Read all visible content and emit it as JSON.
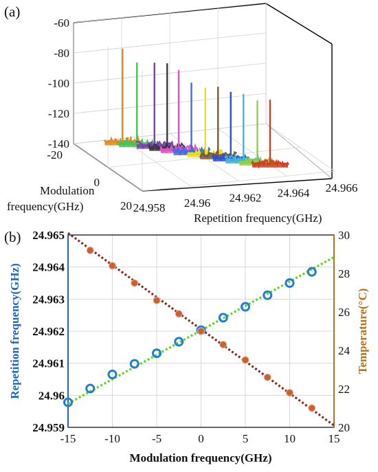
{
  "panel_a": {
    "label": "(a)",
    "chart_data": {
      "type": "line",
      "kind": "3d-waterfall",
      "z_ticks": [
        "-60",
        "-80",
        "-100",
        "-120",
        "-140"
      ],
      "z_range": [
        -140,
        -60
      ],
      "mod_axis_label": [
        "Modulation",
        "frequency(GHz)"
      ],
      "mod_ticks": [
        "-20",
        "0",
        "20"
      ],
      "rep_axis_label": "Repetition frequency(GHz)",
      "rep_ticks": [
        "24.958",
        "24.96",
        "24.962",
        "24.964",
        "24.966"
      ],
      "spectra": [
        {
          "mod": -15,
          "peak_freq": 24.95968,
          "peak_dbm": -76,
          "color": "#d98a20"
        },
        {
          "mod": -12.5,
          "peak_freq": 24.9601,
          "peak_dbm": -84,
          "color": "#46c25a"
        },
        {
          "mod": -10,
          "peak_freq": 24.96065,
          "peak_dbm": -83,
          "color": "#7b3fb0"
        },
        {
          "mod": -7.5,
          "peak_freq": 24.961,
          "peak_dbm": -82,
          "color": "#3a3a3a"
        },
        {
          "mod": -5,
          "peak_freq": 24.9613,
          "peak_dbm": -85,
          "color": "#e053c8"
        },
        {
          "mod": -2.5,
          "peak_freq": 24.96165,
          "peak_dbm": -92,
          "color": "#3b6ee0"
        },
        {
          "mod": 0,
          "peak_freq": 24.96205,
          "peak_dbm": -94,
          "color": "#e8e020"
        },
        {
          "mod": 2.5,
          "peak_freq": 24.9624,
          "peak_dbm": -92,
          "color": "#7a5a3a"
        },
        {
          "mod": 5,
          "peak_freq": 24.96275,
          "peak_dbm": -94,
          "color": "#2e4fd6"
        },
        {
          "mod": 7.5,
          "peak_freq": 24.9631,
          "peak_dbm": -94,
          "color": "#3fb8d8"
        },
        {
          "mod": 10,
          "peak_freq": 24.9635,
          "peak_dbm": -97,
          "color": "#8ed040"
        },
        {
          "mod": 12.5,
          "peak_freq": 24.96385,
          "peak_dbm": -95,
          "color": "#d0401c"
        }
      ]
    }
  },
  "panel_b": {
    "label": "(b)",
    "chart_data": {
      "type": "scatter",
      "xlabel": "Modulation frequency(GHz)",
      "ylabel_left": "Repetition frequency(GHz)",
      "ylabel_right": "Temperature(°C)",
      "xlim": [
        -15,
        15
      ],
      "ylim_left": [
        24.959,
        24.965
      ],
      "ylim_right": [
        20,
        30
      ],
      "x_ticks": [
        "-15",
        "-10",
        "-5",
        "0",
        "5",
        "10",
        "15"
      ],
      "y_left_ticks": [
        "24.959",
        "24.96",
        "24.961",
        "24.962",
        "24.963",
        "24.964",
        "24.965"
      ],
      "y_right_ticks": [
        "20",
        "22",
        "24",
        "26",
        "28",
        "30"
      ],
      "series": [
        {
          "axis": "left",
          "color": "#1f7fd0",
          "x": [
            -15,
            -12.5,
            -10,
            -7.5,
            -5,
            -2.5,
            0,
            2.5,
            5,
            7.5,
            10,
            12.5
          ],
          "y": [
            24.95978,
            24.96021,
            24.96065,
            24.96098,
            24.96131,
            24.96167,
            24.96203,
            24.96242,
            24.96276,
            24.96312,
            24.9635,
            24.96385
          ]
        },
        {
          "axis": "right",
          "color": "#c8642a",
          "x": [
            -12.5,
            -10,
            -7.5,
            -5,
            -2.5,
            0,
            2.5,
            5,
            7.5,
            10,
            12.5
          ],
          "y": [
            29.2,
            28.4,
            27.5,
            26.6,
            25.9,
            25.0,
            24.3,
            23.5,
            22.6,
            21.8,
            21.0
          ]
        }
      ],
      "fits": [
        {
          "axis": "left",
          "color": "#5fd61f",
          "x": [
            -15,
            15
          ],
          "y": [
            24.95974,
            24.96431
          ]
        },
        {
          "axis": "right",
          "color": "#8c2a1c",
          "x": [
            -15,
            15
          ],
          "y": [
            30.1,
            20.1
          ]
        }
      ]
    }
  }
}
